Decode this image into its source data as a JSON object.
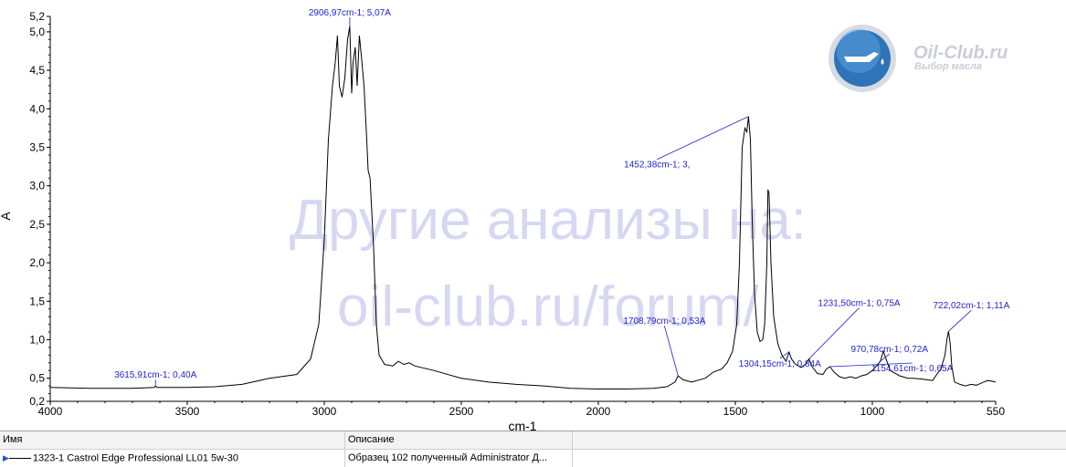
{
  "chart_data": {
    "type": "line",
    "title": "",
    "xlabel": "cm-1",
    "ylabel": "A",
    "x_range": [
      4000,
      550
    ],
    "x_reversed": true,
    "y_range": [
      0.2,
      5.2
    ],
    "x_ticks": [
      4000,
      3500,
      3000,
      2500,
      2000,
      1500,
      1000,
      550
    ],
    "y_ticks": [
      {
        "v": 0.2,
        "label": "0,2"
      },
      {
        "v": 0.5,
        "label": "0,5"
      },
      {
        "v": 1.0,
        "label": "1,0"
      },
      {
        "v": 1.5,
        "label": "1,5"
      },
      {
        "v": 2.0,
        "label": "2,0"
      },
      {
        "v": 2.5,
        "label": "2,5"
      },
      {
        "v": 3.0,
        "label": "3,0"
      },
      {
        "v": 3.5,
        "label": "3,5"
      },
      {
        "v": 4.0,
        "label": "4,0"
      },
      {
        "v": 4.5,
        "label": "4,5"
      },
      {
        "v": 5.0,
        "label": "5,0"
      },
      {
        "v": 5.2,
        "label": "5,2"
      }
    ],
    "series": [
      {
        "color": "#000000",
        "points": [
          [
            4000,
            0.38
          ],
          [
            3850,
            0.37
          ],
          [
            3700,
            0.37
          ],
          [
            3620,
            0.38
          ],
          [
            3616,
            0.4
          ],
          [
            3610,
            0.38
          ],
          [
            3500,
            0.38
          ],
          [
            3400,
            0.39
          ],
          [
            3300,
            0.42
          ],
          [
            3200,
            0.5
          ],
          [
            3100,
            0.55
          ],
          [
            3050,
            0.75
          ],
          [
            3020,
            1.2
          ],
          [
            3000,
            2.3
          ],
          [
            2985,
            3.6
          ],
          [
            2970,
            4.3
          ],
          [
            2960,
            4.6
          ],
          [
            2952,
            4.95
          ],
          [
            2945,
            4.3
          ],
          [
            2935,
            4.15
          ],
          [
            2925,
            4.4
          ],
          [
            2915,
            4.9
          ],
          [
            2907,
            5.07
          ],
          [
            2900,
            4.2
          ],
          [
            2895,
            4.6
          ],
          [
            2887,
            4.8
          ],
          [
            2880,
            4.3
          ],
          [
            2872,
            4.95
          ],
          [
            2865,
            4.7
          ],
          [
            2855,
            4.3
          ],
          [
            2845,
            3.6
          ],
          [
            2840,
            3.2
          ],
          [
            2833,
            3.1
          ],
          [
            2820,
            2.2
          ],
          [
            2810,
            1.2
          ],
          [
            2800,
            0.8
          ],
          [
            2780,
            0.68
          ],
          [
            2750,
            0.66
          ],
          [
            2730,
            0.72
          ],
          [
            2710,
            0.68
          ],
          [
            2690,
            0.7
          ],
          [
            2670,
            0.66
          ],
          [
            2600,
            0.6
          ],
          [
            2500,
            0.5
          ],
          [
            2400,
            0.45
          ],
          [
            2300,
            0.42
          ],
          [
            2200,
            0.4
          ],
          [
            2100,
            0.37
          ],
          [
            2000,
            0.36
          ],
          [
            1900,
            0.36
          ],
          [
            1800,
            0.37
          ],
          [
            1750,
            0.39
          ],
          [
            1720,
            0.45
          ],
          [
            1709,
            0.53
          ],
          [
            1690,
            0.48
          ],
          [
            1660,
            0.45
          ],
          [
            1640,
            0.47
          ],
          [
            1610,
            0.5
          ],
          [
            1580,
            0.58
          ],
          [
            1550,
            0.62
          ],
          [
            1530,
            0.7
          ],
          [
            1510,
            0.85
          ],
          [
            1495,
            1.2
          ],
          [
            1485,
            2.0
          ],
          [
            1475,
            3.5
          ],
          [
            1465,
            3.75
          ],
          [
            1458,
            3.7
          ],
          [
            1452,
            3.9
          ],
          [
            1445,
            3.6
          ],
          [
            1438,
            2.5
          ],
          [
            1430,
            1.6
          ],
          [
            1420,
            1.1
          ],
          [
            1410,
            0.98
          ],
          [
            1400,
            1.0
          ],
          [
            1393,
            1.2
          ],
          [
            1385,
            2.0
          ],
          [
            1381,
            2.95
          ],
          [
            1377,
            2.9
          ],
          [
            1370,
            2.0
          ],
          [
            1360,
            1.3
          ],
          [
            1345,
            0.95
          ],
          [
            1330,
            0.8
          ],
          [
            1315,
            0.72
          ],
          [
            1304,
            0.84
          ],
          [
            1295,
            0.75
          ],
          [
            1280,
            0.68
          ],
          [
            1260,
            0.64
          ],
          [
            1245,
            0.68
          ],
          [
            1231,
            0.75
          ],
          [
            1220,
            0.65
          ],
          [
            1200,
            0.56
          ],
          [
            1180,
            0.55
          ],
          [
            1168,
            0.62
          ],
          [
            1155,
            0.65
          ],
          [
            1140,
            0.58
          ],
          [
            1120,
            0.52
          ],
          [
            1100,
            0.5
          ],
          [
            1080,
            0.52
          ],
          [
            1060,
            0.5
          ],
          [
            1040,
            0.53
          ],
          [
            1020,
            0.55
          ],
          [
            1000,
            0.6
          ],
          [
            985,
            0.66
          ],
          [
            971,
            0.72
          ],
          [
            960,
            0.85
          ],
          [
            950,
            0.75
          ],
          [
            935,
            0.6
          ],
          [
            900,
            0.53
          ],
          [
            870,
            0.5
          ],
          [
            850,
            0.5
          ],
          [
            820,
            0.49
          ],
          [
            800,
            0.48
          ],
          [
            780,
            0.47
          ],
          [
            765,
            0.55
          ],
          [
            750,
            0.62
          ],
          [
            735,
            0.8
          ],
          [
            728,
            1.0
          ],
          [
            722,
            1.11
          ],
          [
            716,
            0.95
          ],
          [
            710,
            0.65
          ],
          [
            700,
            0.45
          ],
          [
            680,
            0.42
          ],
          [
            660,
            0.4
          ],
          [
            640,
            0.42
          ],
          [
            620,
            0.41
          ],
          [
            600,
            0.44
          ],
          [
            580,
            0.47
          ],
          [
            560,
            0.46
          ],
          [
            550,
            0.45
          ]
        ]
      }
    ],
    "annotations": [
      {
        "text": "2906,97cm-1; 5,07A",
        "x": 2906.97,
        "y": 5.07
      },
      {
        "text": "1452,38cm-1; 3,",
        "x": 1452.38,
        "y": 3.9
      },
      {
        "text": "1154,61cm-1; 0,65A",
        "x": 1154.61,
        "y": 0.65
      },
      {
        "text": "1231,50cm-1; 0,75A",
        "x": 1231.5,
        "y": 0.75
      },
      {
        "text": "1708,79cm-1; 0,53A",
        "x": 1708.79,
        "y": 0.53
      },
      {
        "text": "3615,91cm-1; 0,40A",
        "x": 3615.91,
        "y": 0.4
      },
      {
        "text": "970,78cm-1; 0,72A",
        "x": 970.78,
        "y": 0.72
      },
      {
        "text": "722,02cm-1; 1,11A",
        "x": 722.02,
        "y": 1.11
      },
      {
        "text": "1304,15cm-1; 0,84A",
        "x": 1304.15,
        "y": 0.84
      }
    ]
  },
  "watermark": {
    "line1": "Другие анализы на:",
    "line2": "oil-club.ru/forum/"
  },
  "logo": {
    "title": "Oil-Club.ru",
    "subtitle": "Выбор масла"
  },
  "grid": {
    "headers": {
      "name": "Имя",
      "description": "Описание"
    },
    "rows": [
      {
        "name": "1323-1 Castrol Edge Professional  LL01 5w-30",
        "description": "Образец 102 полученный Administrator Д..."
      }
    ]
  }
}
